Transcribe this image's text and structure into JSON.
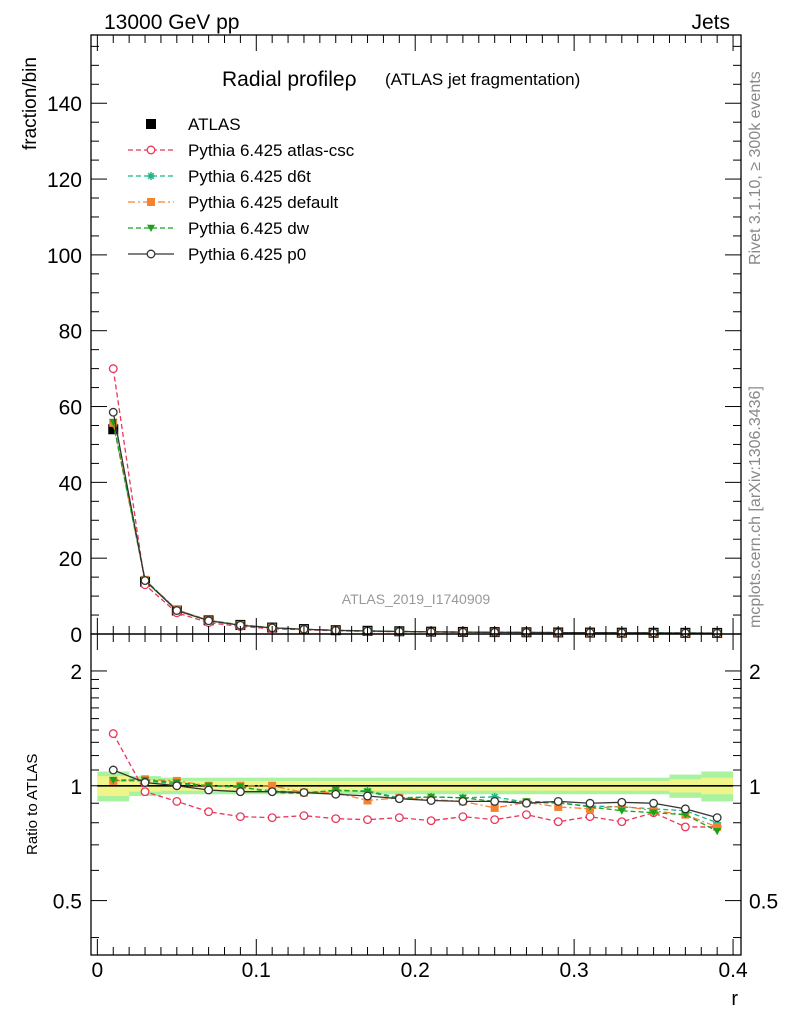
{
  "header": {
    "left": "13000 GeV pp",
    "right": "Jets"
  },
  "side_labels": {
    "rivet": "Rivet 3.1.10, ≥ 300k events",
    "mcplots": "mcplots.cern.ch [arXiv:1306.3436]"
  },
  "watermark": "ATLAS_2019_I1740909",
  "chart_data": [
    {
      "type": "line",
      "title": "Radial profileρ",
      "subtitle": "(ATLAS jet fragmentation)",
      "ylabel": "fraction/bin",
      "xlim": [
        -0.004,
        0.405
      ],
      "ylim": [
        0,
        158
      ],
      "yticks": [
        0,
        20,
        40,
        60,
        80,
        100,
        120,
        140
      ],
      "x": [
        0.01,
        0.03,
        0.05,
        0.07,
        0.09,
        0.11,
        0.13,
        0.15,
        0.17,
        0.19,
        0.21,
        0.23,
        0.25,
        0.27,
        0.29,
        0.31,
        0.33,
        0.35,
        0.37,
        0.39
      ],
      "legend_position": "top-left",
      "series": [
        {
          "name": "ATLAS",
          "color": "#000000",
          "marker": "square",
          "line": "none",
          "values": [
            54,
            13.8,
            6.2,
            3.6,
            2.4,
            1.7,
            1.3,
            1.0,
            0.85,
            0.72,
            0.62,
            0.55,
            0.5,
            0.45,
            0.41,
            0.38,
            0.35,
            0.33,
            0.31,
            0.29
          ]
        },
        {
          "name": "Pythia 6.425 atlas-csc",
          "color": "#e8375a",
          "marker": "open-circle",
          "line": "dashed",
          "values": [
            70,
            13.0,
            5.6,
            3.0,
            2.0,
            1.4,
            1.1,
            0.85,
            0.7,
            0.6,
            0.5,
            0.46,
            0.41,
            0.38,
            0.33,
            0.31,
            0.28,
            0.28,
            0.24,
            0.23
          ]
        },
        {
          "name": "Pythia 6.425 d6t",
          "color": "#1fb38a",
          "marker": "star",
          "line": "dashed",
          "values": [
            55.5,
            14.2,
            6.3,
            3.6,
            2.4,
            1.65,
            1.25,
            0.97,
            0.83,
            0.67,
            0.58,
            0.51,
            0.47,
            0.41,
            0.37,
            0.34,
            0.31,
            0.29,
            0.27,
            0.23
          ]
        },
        {
          "name": "Pythia 6.425 default",
          "color": "#f58231",
          "marker": "square",
          "line": "dashdot",
          "values": [
            55.7,
            14.3,
            6.4,
            3.6,
            2.4,
            1.7,
            1.25,
            0.96,
            0.78,
            0.67,
            0.57,
            0.5,
            0.44,
            0.41,
            0.36,
            0.33,
            0.31,
            0.28,
            0.26,
            0.23
          ]
        },
        {
          "name": "Pythia 6.425 dw",
          "color": "#1aa31a",
          "marker": "triangle-down",
          "line": "dashed",
          "values": [
            55.9,
            14.3,
            6.3,
            3.6,
            2.4,
            1.63,
            1.24,
            0.98,
            0.82,
            0.66,
            0.58,
            0.51,
            0.45,
            0.41,
            0.37,
            0.33,
            0.3,
            0.28,
            0.26,
            0.22
          ]
        },
        {
          "name": "Pythia 6.425 p0",
          "color": "#333333",
          "marker": "open-circle",
          "line": "solid",
          "values": [
            58.5,
            14.1,
            6.2,
            3.5,
            2.3,
            1.62,
            1.25,
            0.95,
            0.8,
            0.66,
            0.56,
            0.5,
            0.45,
            0.41,
            0.37,
            0.34,
            0.32,
            0.3,
            0.27,
            0.24
          ]
        }
      ]
    },
    {
      "type": "line",
      "ylabel": "Ratio to ATLAS",
      "xlabel": "r",
      "xlim": [
        -0.004,
        0.405
      ],
      "ylim": [
        0.36,
        2.5
      ],
      "y_scale": "log",
      "yticks": [
        0.5,
        1,
        2
      ],
      "xticks": [
        0,
        0.1,
        0.2,
        0.3,
        0.4
      ],
      "x": [
        0.01,
        0.03,
        0.05,
        0.07,
        0.09,
        0.11,
        0.13,
        0.15,
        0.17,
        0.19,
        0.21,
        0.23,
        0.25,
        0.27,
        0.29,
        0.31,
        0.33,
        0.35,
        0.37,
        0.39
      ],
      "reference_band": {
        "inner": [
          0.06,
          0.035,
          0.03,
          0.03,
          0.03,
          0.03,
          0.03,
          0.03,
          0.03,
          0.03,
          0.03,
          0.03,
          0.03,
          0.03,
          0.03,
          0.03,
          0.03,
          0.03,
          0.04,
          0.05
        ],
        "outer": [
          0.09,
          0.06,
          0.05,
          0.05,
          0.05,
          0.05,
          0.05,
          0.05,
          0.05,
          0.05,
          0.05,
          0.05,
          0.05,
          0.05,
          0.05,
          0.05,
          0.05,
          0.05,
          0.07,
          0.09
        ],
        "inner_color": "#f0f58a",
        "outer_color": "#a8f2a0"
      },
      "series": [
        {
          "name": "Pythia 6.425 atlas-csc",
          "color": "#e8375a",
          "marker": "open-circle",
          "line": "dashed",
          "values": [
            1.37,
            0.965,
            0.91,
            0.855,
            0.83,
            0.825,
            0.835,
            0.82,
            0.815,
            0.825,
            0.81,
            0.83,
            0.815,
            0.84,
            0.805,
            0.83,
            0.805,
            0.85,
            0.78,
            0.78
          ]
        },
        {
          "name": "Pythia 6.425 d6t",
          "color": "#1fb38a",
          "marker": "star",
          "line": "dashed",
          "values": [
            1.03,
            1.03,
            1.01,
            1.0,
            0.99,
            0.97,
            0.96,
            0.97,
            0.97,
            0.93,
            0.935,
            0.93,
            0.935,
            0.905,
            0.9,
            0.885,
            0.88,
            0.87,
            0.86,
            0.8
          ]
        },
        {
          "name": "Pythia 6.425 default",
          "color": "#f58231",
          "marker": "square",
          "line": "dashdot",
          "values": [
            1.03,
            1.04,
            1.03,
            1.0,
            1.0,
            1.0,
            0.96,
            0.96,
            0.915,
            0.93,
            0.92,
            0.91,
            0.875,
            0.905,
            0.88,
            0.87,
            0.885,
            0.86,
            0.84,
            0.78
          ]
        },
        {
          "name": "Pythia 6.425 dw",
          "color": "#1aa31a",
          "marker": "triangle-down",
          "line": "dashed",
          "values": [
            1.035,
            1.035,
            1.02,
            1.0,
            0.995,
            0.96,
            0.955,
            0.975,
            0.965,
            0.925,
            0.935,
            0.93,
            0.91,
            0.91,
            0.905,
            0.88,
            0.86,
            0.85,
            0.84,
            0.76
          ]
        },
        {
          "name": "Pythia 6.425 p0",
          "color": "#333333",
          "marker": "open-circle",
          "line": "solid",
          "values": [
            1.1,
            1.02,
            1.0,
            0.975,
            0.965,
            0.965,
            0.96,
            0.95,
            0.94,
            0.925,
            0.915,
            0.91,
            0.91,
            0.9,
            0.91,
            0.9,
            0.905,
            0.9,
            0.87,
            0.825
          ]
        }
      ]
    }
  ]
}
